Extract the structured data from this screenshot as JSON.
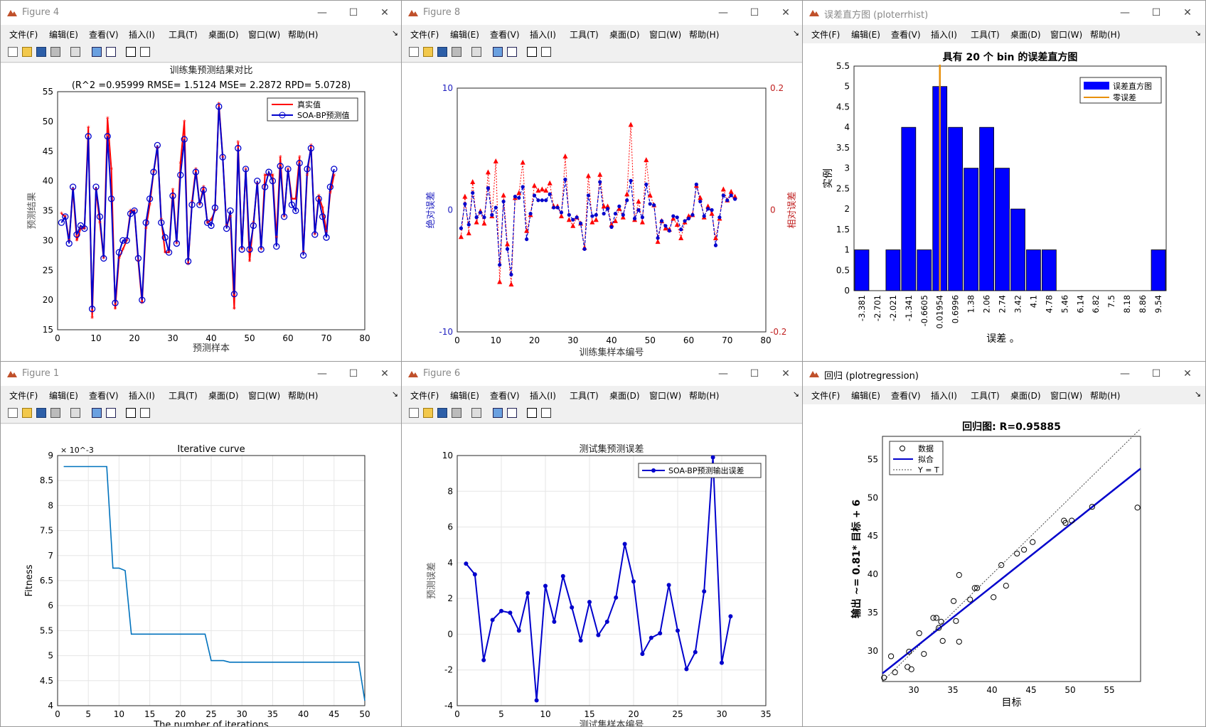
{
  "menus": [
    "文件(F)",
    "编辑(E)",
    "查看(V)",
    "插入(I)",
    "工具(T)",
    "桌面(D)",
    "窗口(W)",
    "帮助(H)"
  ],
  "windows": {
    "fig4": {
      "title": "Figure 4"
    },
    "fig8": {
      "title": "Figure 8"
    },
    "hist": {
      "title": "误差直方图 (ploterrhist)"
    },
    "fig1": {
      "title": "Figure 1"
    },
    "fig6": {
      "title": "Figure 6"
    },
    "reg": {
      "title": "回归 (plotregression)"
    }
  },
  "charts": {
    "fig4": {
      "type": "line",
      "title": "训练集预测结果对比",
      "subtitle": "(R^2 =0.95999 RMSE= 1.5124 MSE= 2.2872 RPD= 5.0728)",
      "xlabel": "预测样本",
      "ylabel": "预测结果",
      "xlim": [
        0,
        80
      ],
      "ylim": [
        15,
        55
      ],
      "xticks": [
        0,
        10,
        20,
        30,
        40,
        50,
        60,
        70,
        80
      ],
      "yticks": [
        15,
        20,
        25,
        30,
        35,
        40,
        45,
        50,
        55
      ],
      "legend": [
        "真实值",
        "SOA-BP预测值"
      ],
      "colors": {
        "real": "#ff0000",
        "pred": "#0000cc"
      }
    },
    "fig8": {
      "type": "line",
      "xlabel": "训练集样本编号",
      "ylabel_left": "绝对误差",
      "ylabel_right": "相对误差",
      "xlim": [
        0,
        80
      ],
      "ylim_left": [
        -10,
        10
      ],
      "ylim_right": [
        -0.2,
        0.2
      ],
      "xticks": [
        0,
        10,
        20,
        30,
        40,
        50,
        60,
        70,
        80
      ],
      "yticks_left": [
        "-10",
        "0",
        "10"
      ],
      "yticks_right": [
        "-0.2",
        "0",
        "0.2"
      ]
    },
    "hist": {
      "type": "bar",
      "title": "具有 20 个 bin 的误差直方图",
      "xlabel": "误差 。",
      "ylabel": "实例",
      "bins": [
        "-3.381",
        "-2.701",
        "-2.021",
        "-1.341",
        "-0.6605",
        "0.01954",
        "0.6996",
        "1.38",
        "2.06",
        "2.74",
        "3.42",
        "4.1",
        "4.78",
        "5.46",
        "6.14",
        "6.82",
        "7.5",
        "8.18",
        "8.86",
        "9.54"
      ],
      "counts": [
        1,
        0,
        1,
        4,
        1,
        5,
        4,
        3,
        4,
        3,
        2,
        1,
        1,
        0,
        0,
        0,
        0,
        0,
        0,
        1
      ],
      "ylim": [
        0,
        5.5
      ],
      "yticks": [
        "0",
        "0.5",
        "1",
        "1.5",
        "2",
        "2.5",
        "3",
        "3.5",
        "4",
        "4.5",
        "5",
        "5.5"
      ],
      "legend": [
        "误差直方图",
        "零误差"
      ],
      "colors": {
        "bar": "#0000ff",
        "zero": "#e8900a"
      }
    },
    "fig1": {
      "type": "line",
      "title": "Iterative curve",
      "xlabel": "The number of iterations",
      "ylabel": "Fitness",
      "exponent": "× 10^-3",
      "xlim": [
        0,
        50
      ],
      "ylim": [
        4,
        9
      ],
      "xticks": [
        0,
        5,
        10,
        15,
        20,
        25,
        30,
        35,
        40,
        45,
        50
      ],
      "yticks": [
        "4",
        "4.5",
        "5",
        "5.5",
        "6",
        "6.5",
        "7",
        "7.5",
        "8",
        "8.5",
        "9"
      ],
      "x": [
        1,
        8,
        9,
        10,
        11,
        12,
        24,
        25,
        27,
        28,
        49,
        50
      ],
      "y": [
        8.78,
        8.78,
        6.75,
        6.75,
        6.7,
        5.43,
        5.43,
        4.9,
        4.9,
        4.87,
        4.87,
        4.1
      ],
      "color": "#0072bd"
    },
    "fig6": {
      "type": "line",
      "title": "测试集预测误差",
      "xlabel": "测试集样本编号",
      "ylabel": "预测误差",
      "legend": "SOA-BP预测输出误差",
      "xlim": [
        0,
        35
      ],
      "ylim": [
        -4,
        10
      ],
      "xticks": [
        0,
        5,
        10,
        15,
        20,
        25,
        30,
        35
      ],
      "yticks": [
        -4,
        -2,
        0,
        2,
        4,
        6,
        8,
        10
      ],
      "values": [
        3.95,
        3.35,
        -1.45,
        0.8,
        1.3,
        1.2,
        0.2,
        2.3,
        -3.7,
        2.7,
        0.7,
        3.25,
        1.5,
        -0.35,
        1.8,
        -0.05,
        0.7,
        2.05,
        5.05,
        2.95,
        -1.1,
        -0.2,
        0.05,
        2.75,
        0.2,
        -1.95,
        -1.0,
        2.4,
        9.9,
        -1.6,
        1.0
      ],
      "color": "#0000cc"
    },
    "reg": {
      "type": "scatter",
      "title": "回归图: R=0.95885",
      "xlabel": "目标",
      "ylabel": "输出 ~= 0.81* 目标 + 6",
      "xlim": [
        26,
        59
      ],
      "ylim": [
        26,
        58
      ],
      "xticks": [
        30,
        35,
        40,
        45,
        50,
        55
      ],
      "yticks": [
        30,
        35,
        40,
        45,
        50,
        55
      ],
      "legend": [
        "数据",
        "拟合",
        "Y = T"
      ],
      "fit": {
        "slope": 0.81,
        "intercept": 6
      },
      "points": [
        [
          26.2,
          26.5
        ],
        [
          27.1,
          29.3
        ],
        [
          27.6,
          27.2
        ],
        [
          29.2,
          27.9
        ],
        [
          29.4,
          29.9
        ],
        [
          29.7,
          27.6
        ],
        [
          30.7,
          32.3
        ],
        [
          31.3,
          29.6
        ],
        [
          32.5,
          34.3
        ],
        [
          32.9,
          34.3
        ],
        [
          33.2,
          33.0
        ],
        [
          33.5,
          33.8
        ],
        [
          33.7,
          31.3
        ],
        [
          35.1,
          36.5
        ],
        [
          35.4,
          33.9
        ],
        [
          35.8,
          39.9
        ],
        [
          35.8,
          31.2
        ],
        [
          37.2,
          36.7
        ],
        [
          37.8,
          38.2
        ],
        [
          38.1,
          38.2
        ],
        [
          40.2,
          37.0
        ],
        [
          41.2,
          41.2
        ],
        [
          41.8,
          38.5
        ],
        [
          43.2,
          42.7
        ],
        [
          44.1,
          43.2
        ],
        [
          45.2,
          44.2
        ],
        [
          49.2,
          47.0
        ],
        [
          49.4,
          46.7
        ],
        [
          50.2,
          47.0
        ],
        [
          52.8,
          48.8
        ],
        [
          58.6,
          48.7
        ]
      ]
    }
  }
}
